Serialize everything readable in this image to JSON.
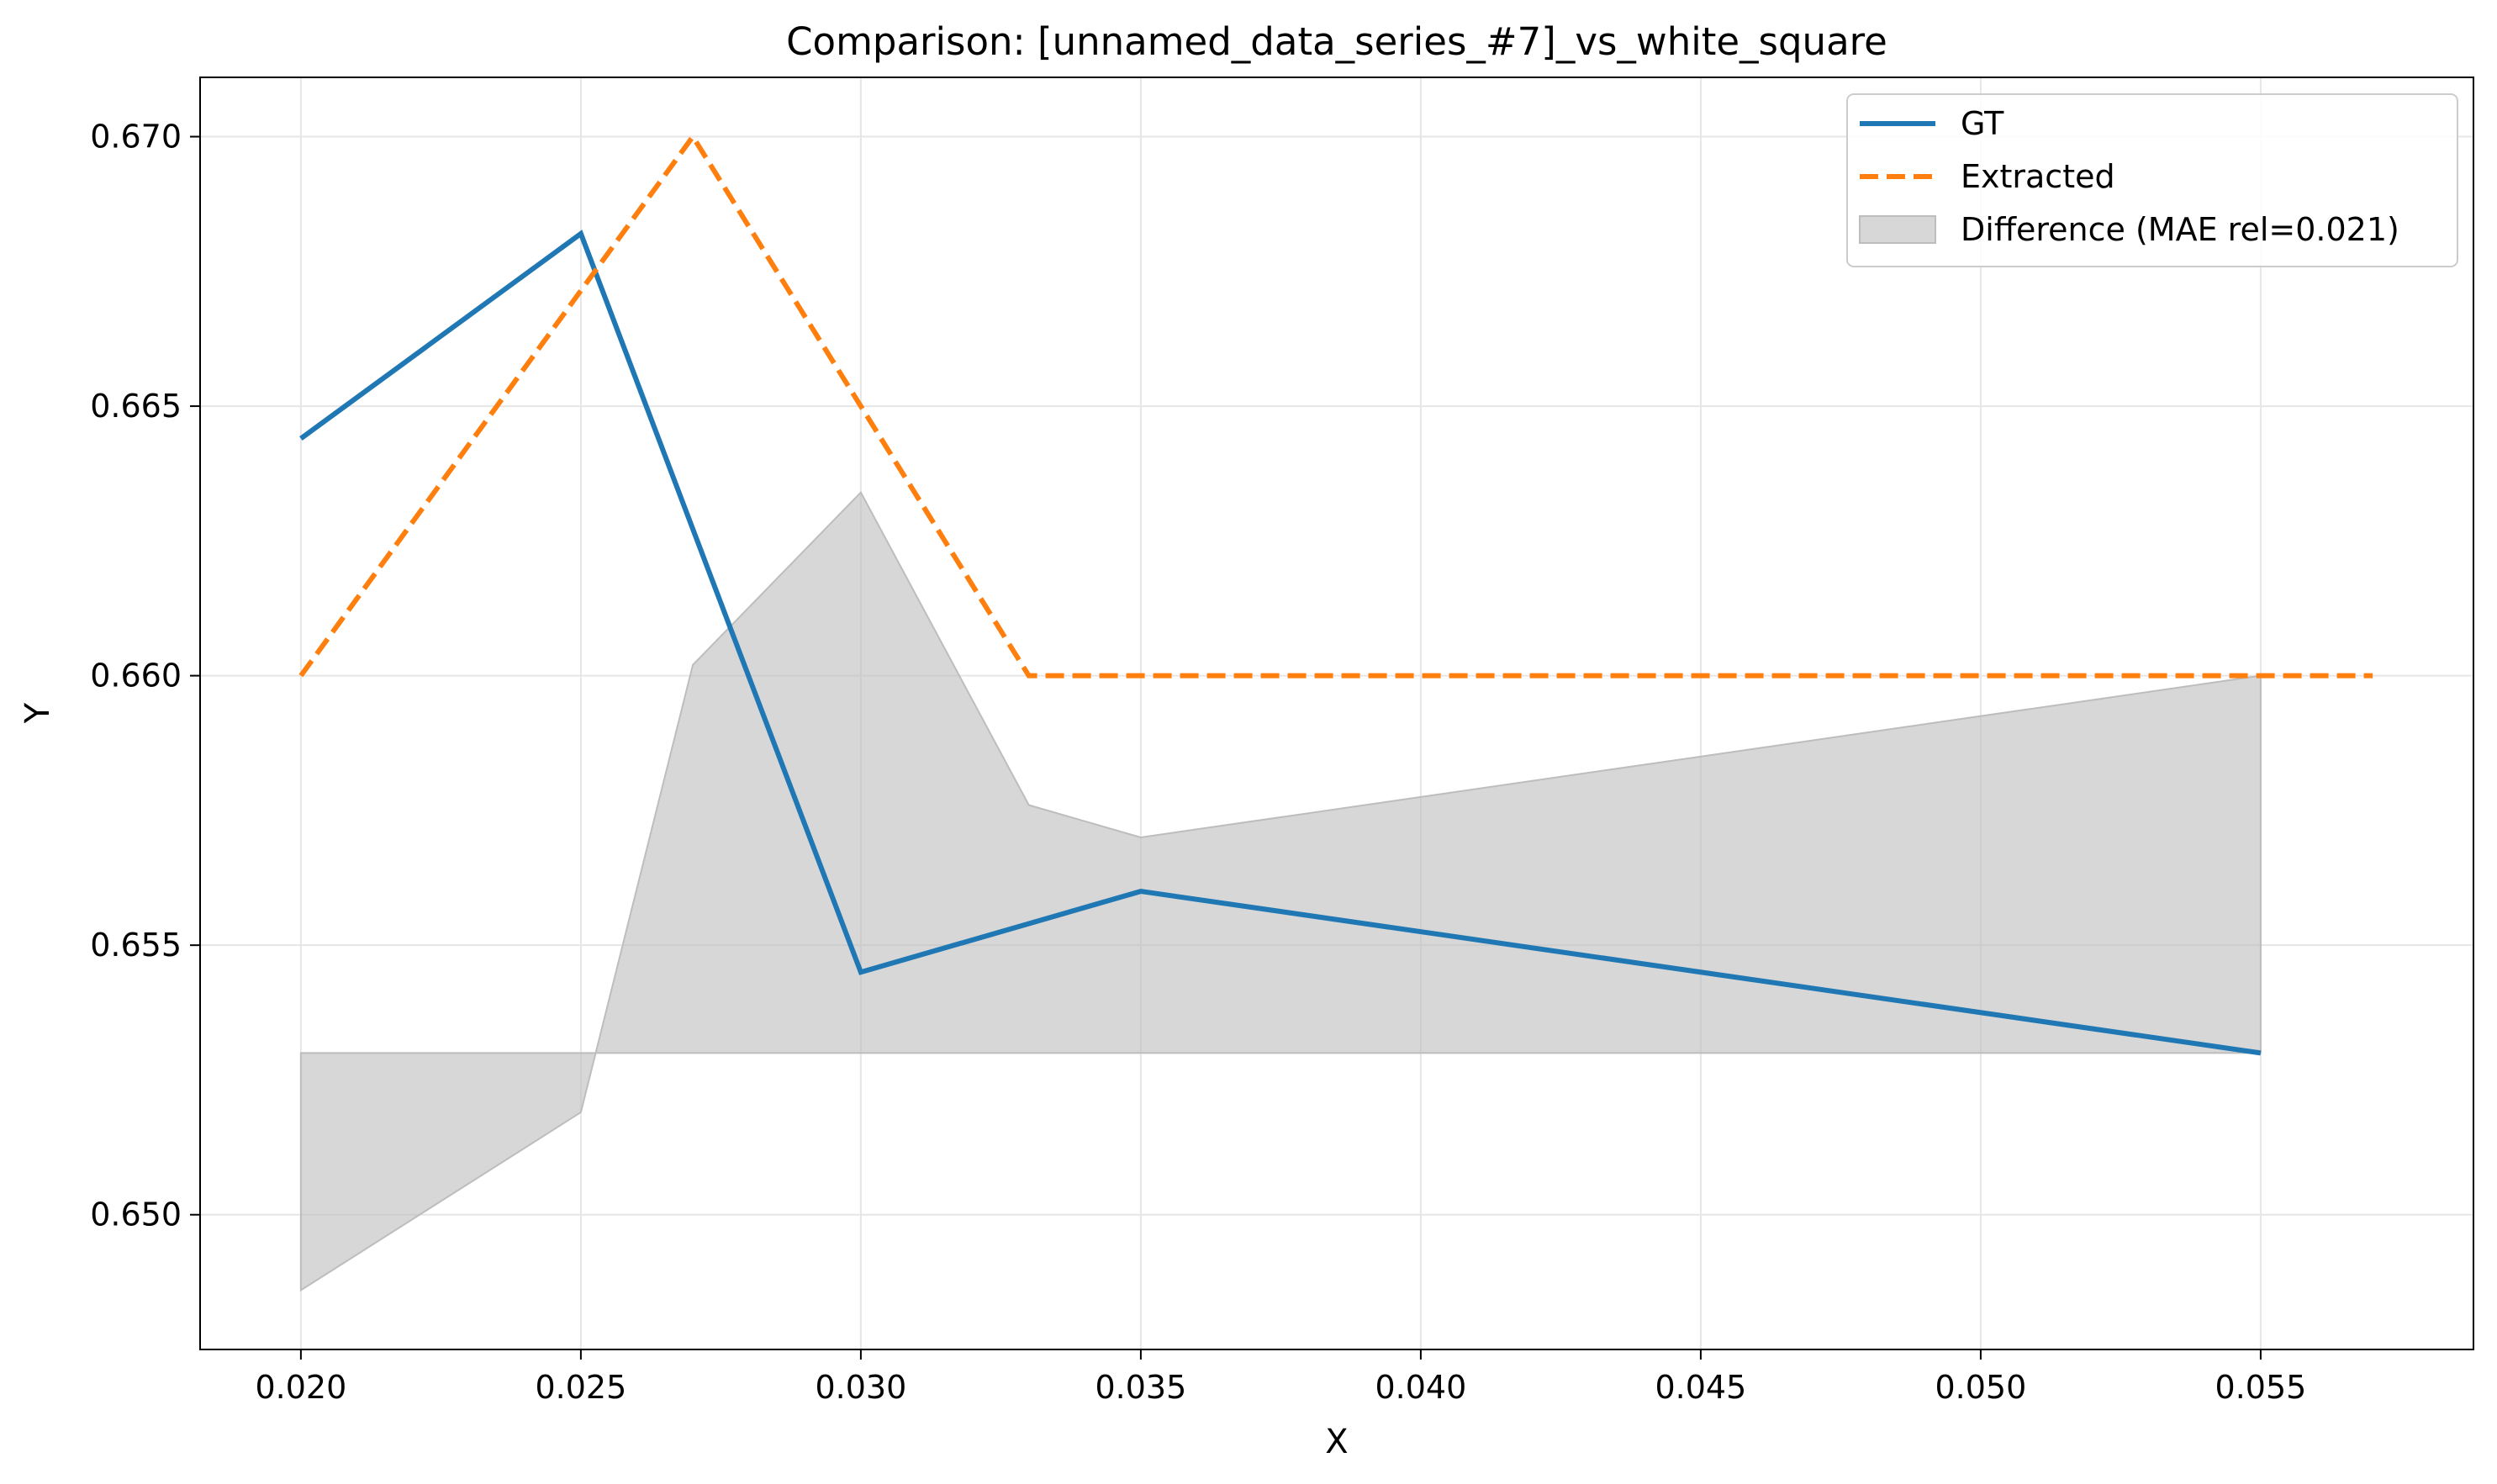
{
  "chart_data": {
    "type": "line",
    "title": "Comparison: [unnamed_data_series_#7]_vs_white_square",
    "xlabel": "X",
    "ylabel": "Y",
    "xlim": [
      0.0182,
      0.0588
    ],
    "ylim": [
      0.6475,
      0.6711
    ],
    "xticks": [
      0.02,
      0.025,
      0.03,
      0.035,
      0.04,
      0.045,
      0.05,
      0.055
    ],
    "xtick_labels": [
      "0.020",
      "0.025",
      "0.030",
      "0.035",
      "0.040",
      "0.045",
      "0.050",
      "0.055"
    ],
    "yticks": [
      0.65,
      0.655,
      0.66,
      0.665,
      0.67
    ],
    "ytick_labels": [
      "0.650",
      "0.655",
      "0.660",
      "0.665",
      "0.670"
    ],
    "grid": true,
    "legend_position": "top-right",
    "series": [
      {
        "name": "GT",
        "style": "solid",
        "color": "#1f77b4",
        "x": [
          0.02,
          0.025,
          0.03,
          0.035,
          0.055
        ],
        "y": [
          0.6644,
          0.6682,
          0.6545,
          0.656,
          0.653
        ]
      },
      {
        "name": "Extracted",
        "style": "dashed",
        "color": "#ff7f0e",
        "x": [
          0.02,
          0.027,
          0.033,
          0.057
        ],
        "y": [
          0.66,
          0.67,
          0.66,
          0.66
        ]
      }
    ],
    "difference": {
      "name": "Difference (MAE rel=0.021)",
      "color": "#bdbdbd",
      "baseline": 0.653,
      "x": [
        0.02,
        0.025,
        0.027,
        0.03,
        0.033,
        0.035,
        0.055
      ],
      "y": [
        0.6486,
        0.6519,
        0.6602,
        0.6634,
        0.6576,
        0.657,
        0.66
      ]
    }
  }
}
